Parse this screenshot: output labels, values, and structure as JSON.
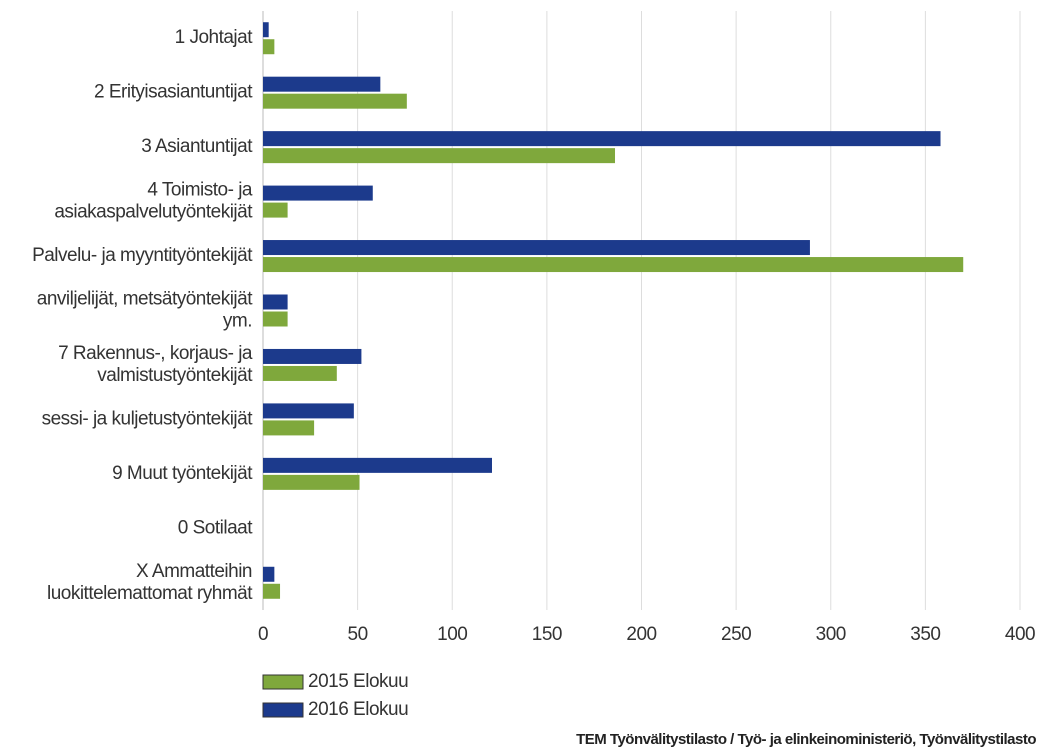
{
  "chart_data": {
    "type": "hbar",
    "categories": [
      "1 Johtajat",
      "2 Erityisasiantuntijat",
      "3 Asiantuntijat",
      "4 Toimisto- ja\nasiakaspalvelutyöntekijät",
      "Palvelu- ja myyntityöntekijät",
      "anviljelijät, metsätyöntekijät\nym.",
      "7 Rakennus-, korjaus- ja\nvalmistustyöntekijät",
      "sessi- ja kuljetustyöntekijät",
      "9 Muut työntekijät",
      "0 Sotilaat",
      "X Ammatteihin\nluokittelemattomat ryhmät"
    ],
    "series": [
      {
        "name": "2015 Elokuu",
        "color": "#7fa83c",
        "values": [
          6,
          76,
          186,
          13,
          370,
          13,
          39,
          27,
          51,
          0,
          9
        ]
      },
      {
        "name": "2016 Elokuu",
        "color": "#1c3a8c",
        "values": [
          3,
          62,
          358,
          58,
          289,
          13,
          52,
          48,
          121,
          0,
          6
        ]
      }
    ],
    "xlim": [
      0,
      400
    ],
    "xticks": [
      0,
      50,
      100,
      150,
      200,
      250,
      300,
      350,
      400
    ],
    "grid": true,
    "legend": "bottom-left",
    "source": "TEM Työnvälitystilasto / Työ- ja elinkeinoministeriö, Työnvälitystilasto"
  }
}
